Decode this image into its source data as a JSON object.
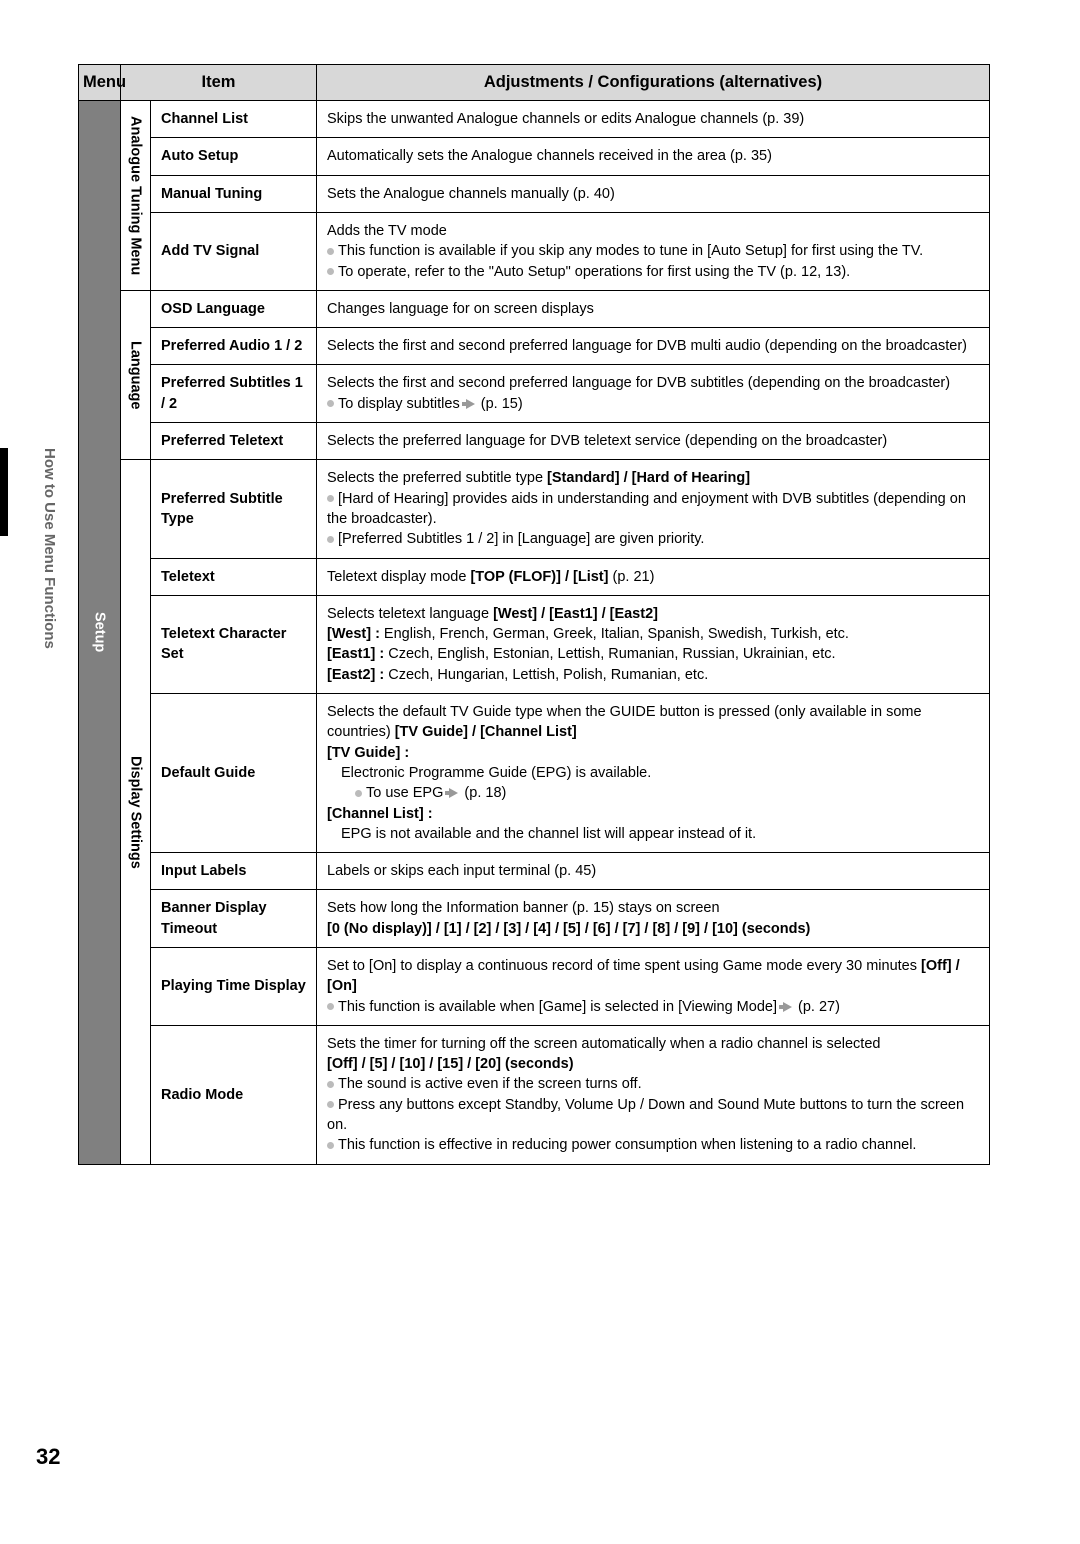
{
  "sideLabel": "How to Use Menu Functions",
  "pageNumber": "32",
  "header": {
    "menu": "Menu",
    "item": "Item",
    "adj": "Adjustments / Configurations (alternatives)"
  },
  "menuLabel": "Setup",
  "sections": [
    {
      "label": "Analogue Tuning Menu",
      "rows": [
        {
          "item": "Channel List",
          "desc": "Skips the unwanted Analogue channels or edits Analogue channels (p. 39)"
        },
        {
          "item": "Auto Setup",
          "desc": "Automatically sets the Analogue channels received in the area (p. 35)"
        },
        {
          "item": "Manual Tuning",
          "desc": "Sets the Analogue channels manually (p. 40)"
        },
        {
          "item": "Add TV Signal",
          "descHtml": "Adds the TV mode<br><span class='bullet'></span>This function is available if you skip any modes to tune in [Auto Setup] for first using the TV.<br><span class='bullet'></span>To operate, refer to the \"Auto Setup\" operations for first using the TV (p. 12, 13)."
        }
      ]
    },
    {
      "label": "Language",
      "rows": [
        {
          "item": "OSD Language",
          "desc": "Changes language for on screen displays"
        },
        {
          "item": "Preferred Audio 1 / 2",
          "desc": "Selects the first and second preferred language for DVB multi audio (depending on the broadcaster)"
        },
        {
          "item": "Preferred Subtitles 1 / 2",
          "descHtml": "Selects the first and second preferred language for DVB subtitles (depending on the broadcaster)<br><span class='bullet'></span>To display subtitles <span class='arrow'></span> (p. 15)"
        },
        {
          "item": "Preferred Teletext",
          "desc": "Selects the preferred language for DVB teletext service (depending on the broadcaster)"
        }
      ]
    },
    {
      "label": "Display Settings",
      "rows": [
        {
          "item": "Preferred Subtitle Type",
          "descHtml": "Selects the preferred subtitle type <b>[Standard] / [Hard of Hearing]</b><br><span class='bullet'></span>[Hard of Hearing] provides aids in understanding and enjoyment with DVB subtitles (depending on the broadcaster).<br><span class='bullet'></span>[Preferred Subtitles 1 / 2] in [Language] are given priority."
        },
        {
          "item": "Teletext",
          "descHtml": "Teletext display mode <b>[TOP (FLOF)] / [List]</b> (p. 21)"
        },
        {
          "item": "Teletext Character Set",
          "descHtml": "Selects teletext language <b>[West] / [East1] / [East2]</b><br><b>[West] :</b> English, French, German, Greek, Italian, Spanish, Swedish, Turkish, etc.<br><b>[East1] :</b> Czech, English, Estonian, Lettish, Rumanian, Russian, Ukrainian, etc.<br><b>[East2] :</b> Czech, Hungarian, Lettish, Polish, Rumanian, etc."
        },
        {
          "item": "Default Guide",
          "descHtml": "Selects the default TV Guide type when the GUIDE button is pressed (only available in some countries) <b>[TV Guide] / [Channel List]</b><br><b>[TV Guide] :</b><br><span class='sub-indent'>Electronic Programme Guide (EPG) is available.</span><span class='sub-indent2'><span class='bullet'></span>To use EPG <span class='arrow'></span> (p. 18)</span><b>[Channel List] :</b><br><span class='sub-indent'>EPG is not available and the channel list will appear instead of it.</span>"
        },
        {
          "item": "Input Labels",
          "desc": "Labels or skips each input terminal (p. 45)"
        },
        {
          "item": "Banner Display Timeout",
          "descHtml": "Sets how long the Information banner (p. 15) stays on screen<br><b>[0 (No display)] / [1] / [2] / [3] / [4] / [5] / [6] / [7] / [8] / [9] / [10] (seconds)</b>"
        },
        {
          "item": "Playing Time Display",
          "descHtml": "Set to [On] to display a continuous record of time spent using Game mode every 30 minutes <b>[Off] / [On]</b><br><span class='bullet'></span>This function is available when [Game] is selected in [Viewing Mode] <span class='arrow'></span> (p. 27)"
        },
        {
          "item": "Radio Mode",
          "descHtml": "Sets the timer for turning off the screen automatically when a radio channel is selected<br><b>[Off] / [5] / [10] / [15] / [20] (seconds)</b><br><span class='bullet'></span>The sound is active even if the screen turns off.<br><span class='bullet'></span>Press any buttons except Standby, Volume Up / Down and Sound Mute buttons to turn the screen on.<br><span class='bullet'></span>This function is effective in reducing power consumption when listening to a radio channel."
        }
      ]
    }
  ]
}
